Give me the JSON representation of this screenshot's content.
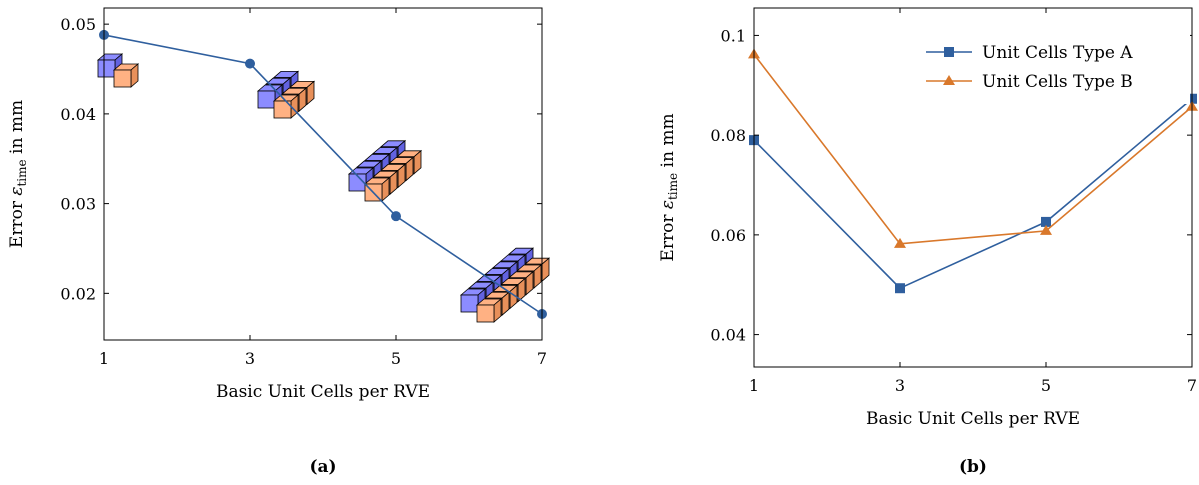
{
  "colors": {
    "series_a": "#2f5f9e",
    "series_b": "#d9782b",
    "cube_blue": "#8c8cff",
    "cube_orange": "#ffb183"
  },
  "chart_data": [
    {
      "type": "line",
      "caption": "(a)",
      "xlabel": "Basic Unit Cells per RVE",
      "ylabel": {
        "main": "Error ",
        "sym": "ε",
        "sub": "time",
        "tail": " in mm"
      },
      "xlim": [
        1,
        7
      ],
      "ylim": [
        0.0148,
        0.0518
      ],
      "xticks": [
        1,
        3,
        5,
        7
      ],
      "yticks": [
        0.02,
        0.03,
        0.04,
        0.05
      ],
      "ytick_labels": [
        "0.02",
        "0.03",
        "0.04",
        "0.05"
      ],
      "grid": false,
      "series": [
        {
          "x": [
            1,
            3,
            5,
            7
          ],
          "values": [
            0.0488,
            0.0456,
            0.0286,
            0.0177
          ],
          "color": "#2f5f9e",
          "marker": "circle"
        }
      ],
      "cube_annotations": [
        {
          "at_x": 1,
          "cells": 1
        },
        {
          "at_x": 3,
          "cells": 3
        },
        {
          "at_x": 5,
          "cells": 5
        },
        {
          "at_x": 7,
          "cells": 7
        }
      ]
    },
    {
      "type": "line",
      "caption": "(b)",
      "xlabel": "Basic Unit Cells per RVE",
      "ylabel": {
        "main": "Error ",
        "sym": "ε",
        "sub": "time",
        "tail": " in mm"
      },
      "xlim": [
        1,
        7
      ],
      "ylim": [
        0.0335,
        0.1055
      ],
      "xticks": [
        1,
        3,
        5,
        7
      ],
      "yticks": [
        0.04,
        0.06,
        0.08,
        0.1
      ],
      "ytick_labels": [
        "0.04",
        "0.06",
        "0.08",
        "0.1"
      ],
      "grid": false,
      "legend_position": "top-right",
      "series": [
        {
          "name": "Unit Cells Type A",
          "x": [
            1,
            3,
            5,
            7
          ],
          "values": [
            0.079,
            0.0493,
            0.0626,
            0.0873
          ],
          "color": "#2f5f9e",
          "marker": "square"
        },
        {
          "name": "Unit Cells Type B",
          "x": [
            1,
            3,
            5,
            7
          ],
          "values": [
            0.0962,
            0.0582,
            0.0608,
            0.0857
          ],
          "color": "#d9782b",
          "marker": "triangle"
        }
      ]
    }
  ]
}
